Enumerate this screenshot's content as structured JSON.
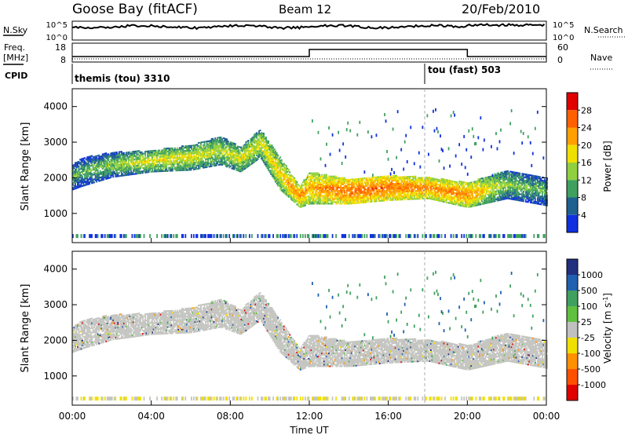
{
  "header": {
    "station": "Goose Bay (fitACF)",
    "beam": "Beam 12",
    "date": "20/Feb/2010"
  },
  "top_panels": {
    "nsky_label": "N.Sky",
    "nsky_ticks": [
      "10^5",
      "10^0"
    ],
    "nsearch_label": "N.Search",
    "nsearch_ticks": [
      "10^5",
      "10^0"
    ],
    "freq_label": "Freq.",
    "freq_unit": "[MHz]",
    "freq_ticks": [
      "18",
      "8"
    ],
    "nave_label": "Nave",
    "nave_ticks": [
      "60",
      "0"
    ],
    "cpid_label": "CPID",
    "cpid_segments": [
      {
        "label": "themis (tou) 3310",
        "start_hour": 0,
        "end_hour": 18.0
      },
      {
        "label": "tou (fast) 503",
        "start_hour": 18.0,
        "end_hour": 24
      }
    ]
  },
  "power_colorbar": {
    "label": "Power [dB]",
    "ticks": [
      "28",
      "24",
      "20",
      "16",
      "12",
      "8",
      "4"
    ],
    "colors": [
      "#e00000",
      "#ff6000",
      "#ffa000",
      "#f0e000",
      "#90d040",
      "#40a060",
      "#206090",
      "#1030e0"
    ]
  },
  "velocity_colorbar": {
    "label": "Velocity [m s",
    "label_sup": "-1",
    "label_end": "]",
    "ticks": [
      "1000",
      "500",
      "100",
      "25",
      "-25",
      "-100",
      "-500",
      "-1000"
    ],
    "colors": [
      "#203080",
      "#2060b0",
      "#40a060",
      "#60c040",
      "#c0c0c0",
      "#f0e000",
      "#ff9000",
      "#ff5000",
      "#e00000"
    ]
  },
  "chart_data": [
    {
      "type": "heatmap",
      "title": "Power",
      "ylabel": "Slant Range [km]",
      "y_ticks": [
        "4000",
        "3000",
        "2000",
        "1000"
      ],
      "ylim": [
        180,
        4500
      ],
      "xlim": [
        0,
        24
      ],
      "x_unit": "hours UT",
      "echo_band": {
        "x": [
          0,
          0.5,
          2,
          4,
          6,
          7.5,
          8.5,
          9.5,
          10.5,
          11.5,
          12,
          14,
          16,
          18,
          20,
          22,
          24
        ],
        "center_km": [
          2000,
          2150,
          2350,
          2450,
          2550,
          2750,
          2500,
          2950,
          2100,
          1450,
          1700,
          1600,
          1700,
          1700,
          1500,
          1800,
          1600
        ],
        "width_km": [
          350,
          400,
          350,
          300,
          350,
          400,
          350,
          400,
          450,
          300,
          450,
          350,
          350,
          300,
          350,
          400,
          400
        ],
        "power_db": [
          12,
          12,
          14,
          18,
          18,
          16,
          18,
          18,
          20,
          24,
          22,
          26,
          26,
          24,
          24,
          14,
          12
        ]
      }
    },
    {
      "type": "heatmap",
      "title": "Velocity",
      "ylabel": "Slant Range [km]",
      "y_ticks": [
        "4000",
        "3000",
        "2000",
        "1000"
      ],
      "ylim": [
        180,
        4500
      ],
      "xlim": [
        0,
        24
      ],
      "x_ticks": [
        "00:00",
        "04:00",
        "08:00",
        "12:00",
        "16:00",
        "20:00",
        "00:00"
      ],
      "xlabel": "Time UT"
    }
  ]
}
